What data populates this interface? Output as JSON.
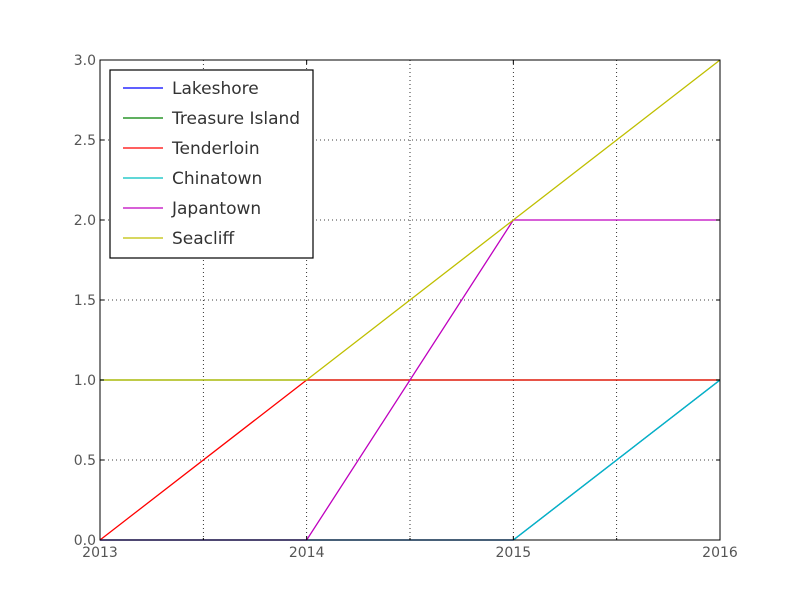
{
  "chart_data": {
    "type": "line",
    "title": "",
    "xlabel": "",
    "ylabel": "",
    "x": [
      2013,
      2014,
      2015,
      2016
    ],
    "xlim": [
      2013,
      2016
    ],
    "ylim": [
      0,
      3
    ],
    "xticks": [
      2013,
      2014,
      2015,
      2016
    ],
    "xtick_labels": [
      "2013",
      "2014",
      "2015",
      "2016"
    ],
    "yticks": [
      0,
      0.5,
      1,
      1.5,
      2,
      2.5,
      3
    ],
    "ytick_labels": [
      "0.0",
      "0.5",
      "1.0",
      "1.5",
      "2.0",
      "2.5",
      "3.0"
    ],
    "x_minor_ticks": [
      2013.5,
      2014.5,
      2015.5
    ],
    "grid": true,
    "legend_position": "top-left",
    "series": [
      {
        "name": "Lakeshore",
        "color": "#0000ff",
        "values": [
          0,
          0,
          0,
          1
        ]
      },
      {
        "name": "Treasure Island",
        "color": "#008000",
        "values": [
          1,
          1,
          1,
          1
        ]
      },
      {
        "name": "Tenderloin",
        "color": "#ff0000",
        "values": [
          0,
          1,
          1,
          1
        ]
      },
      {
        "name": "Chinatown",
        "color": "#00bfbf",
        "values": [
          0,
          0,
          0,
          1
        ]
      },
      {
        "name": "Japantown",
        "color": "#bf00bf",
        "values": [
          0,
          0,
          2,
          2
        ]
      },
      {
        "name": "Seacliff",
        "color": "#bfbf00",
        "values": [
          1,
          1,
          2,
          3
        ]
      }
    ]
  }
}
